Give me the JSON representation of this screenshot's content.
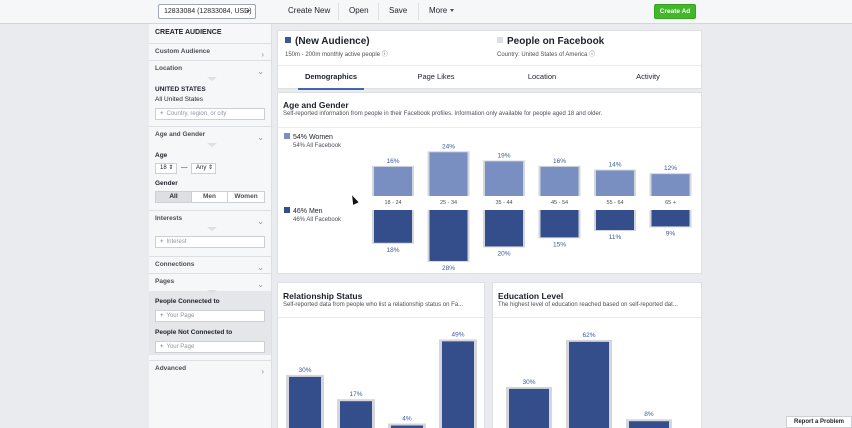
{
  "topbar": {
    "account": "12833084 (12833084, USD)",
    "create_new": "Create New",
    "open": "Open",
    "save": "Save",
    "more": "More",
    "create_ad": "Create Ad",
    "accent_color": "#42b72a"
  },
  "sidebar": {
    "title": "CREATE AUDIENCE",
    "custom_audience": "Custom Audience",
    "location": "Location",
    "location_country": "UNITED STATES",
    "location_scope": "All United States",
    "location_placeholder": "Country, region, or city",
    "age_gender": "Age and Gender",
    "age_label": "Age",
    "age_min": "18",
    "age_sep": "—",
    "age_max": "Any",
    "gender_label": "Gender",
    "gender_all": "All",
    "gender_men": "Men",
    "gender_women": "Women",
    "interests": "Interests",
    "interest_placeholder": "Interest",
    "connections": "Connections",
    "pages": "Pages",
    "people_connected": "People Connected to",
    "your_page_1": "Your Page",
    "people_not_connected": "People Not Connected to",
    "your_page_2": "Your Page",
    "advanced": "Advanced"
  },
  "audience": {
    "name": "(New Audience)",
    "size": "150m - 200m monthly active people",
    "pof_name": "People on Facebook",
    "pof_country": "Country: United States of America",
    "audience_color": "#3b5998",
    "pof_color": "#dddfe2"
  },
  "tabs": [
    "Demographics",
    "Page Likes",
    "Location",
    "Activity"
  ],
  "age_gender": {
    "title": "Age and Gender",
    "subtitle": "Self-reported information from people in their Facebook profiles. Information only available for people aged 18 and older.",
    "women_label": "54% Women",
    "women_sub": "54% All Facebook",
    "men_label": "46% Men",
    "men_sub": "46% All Facebook",
    "women_color": "#7a8fc1",
    "men_color": "#344e8c",
    "baseline_color": "#d4d6db"
  },
  "relationship": {
    "title": "Relationship Status",
    "subtitle": "Self-reported data from people who list a relationship status on Fa..."
  },
  "education": {
    "title": "Education Level",
    "subtitle": "The highest level of education reached based on self-reported dat..."
  },
  "report_problem": "Report a Problem",
  "chart_data": [
    {
      "type": "bar",
      "categories": [
        "18 - 24",
        "25 - 34",
        "35 - 44",
        "45 - 54",
        "55 - 64",
        "65 +"
      ],
      "series": [
        {
          "name": "Women",
          "values": [
            16,
            24,
            19,
            16,
            14,
            12
          ],
          "labels": [
            "16%",
            "24%",
            "19%",
            "16%",
            "14%",
            "12%"
          ]
        },
        {
          "name": "Men",
          "values": [
            18,
            28,
            20,
            15,
            11,
            9
          ],
          "labels": [
            "18%",
            "28%",
            "20%",
            "15%",
            "11%",
            "9%"
          ]
        }
      ]
    },
    {
      "type": "bar",
      "values": [
        30,
        17,
        4,
        49
      ],
      "labels": [
        "30%",
        "17%",
        "4%",
        "49%"
      ]
    },
    {
      "type": "bar",
      "values": [
        30,
        62,
        8
      ],
      "labels": [
        "30%",
        "62%",
        "8%"
      ]
    }
  ]
}
